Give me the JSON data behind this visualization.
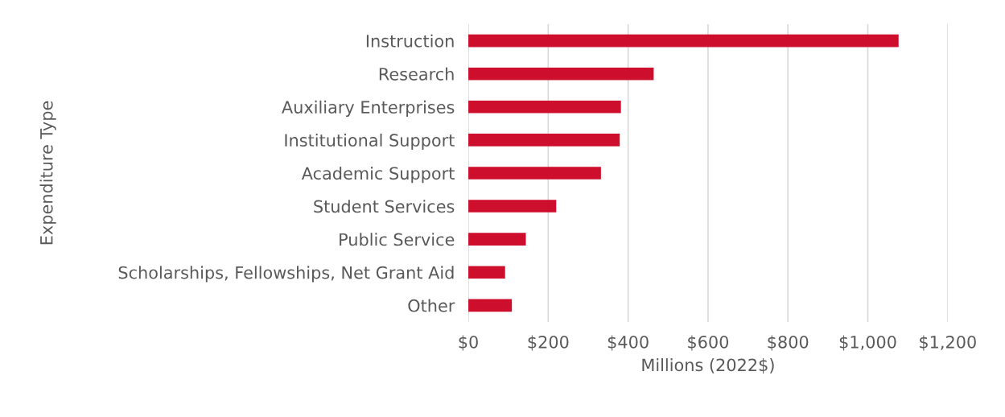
{
  "chart_data": {
    "type": "bar",
    "orientation": "horizontal",
    "xlabel": "Millions (2022$)",
    "ylabel": "Expenditure Type",
    "categories": [
      "Instruction",
      "Research",
      "Auxiliary Enterprises",
      "Institutional Support",
      "Academic Support",
      "Student Services",
      "Public Service",
      "Scholarships, Fellowships, Net Grant Aid",
      "Other"
    ],
    "values": [
      1077,
      464,
      382,
      379,
      332,
      220,
      144,
      92,
      109
    ],
    "color": "#ce0e2d",
    "xlim": [
      0,
      1200
    ],
    "xticks": [
      {
        "value": 0,
        "label": "$0"
      },
      {
        "value": 200,
        "label": "$200"
      },
      {
        "value": 400,
        "label": "$400"
      },
      {
        "value": 600,
        "label": "$600"
      },
      {
        "value": 800,
        "label": "$800"
      },
      {
        "value": 1000,
        "label": "$1,000"
      },
      {
        "value": 1200,
        "label": "$1,200"
      }
    ],
    "grid": "x",
    "legend": false
  }
}
